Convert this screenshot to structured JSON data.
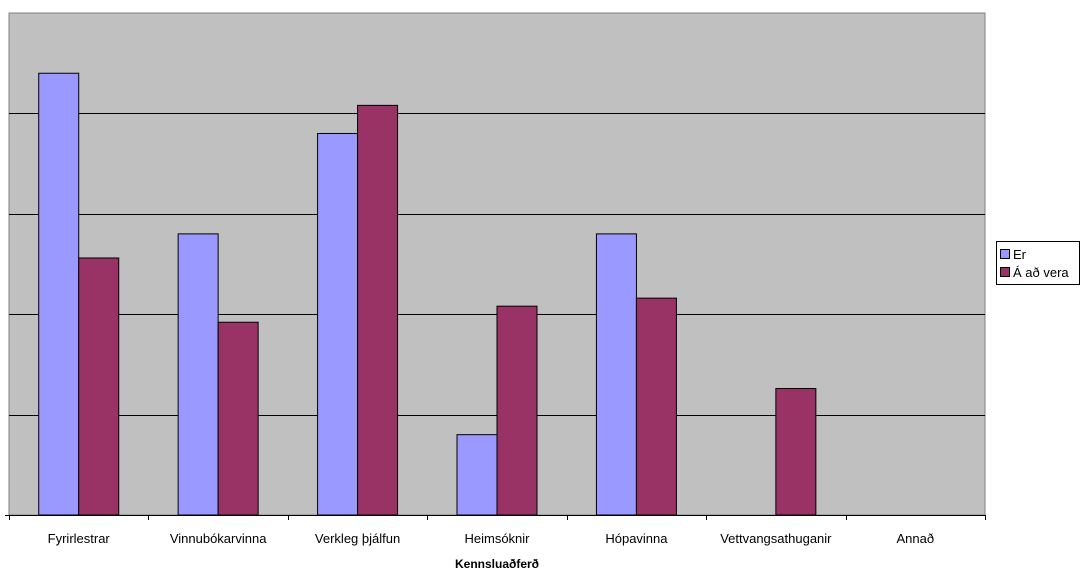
{
  "chart_data": {
    "type": "bar",
    "title": "",
    "xlabel": "Kennsluaðferð",
    "ylabel": "",
    "categories": [
      "Fyrirlestrar",
      "Vinnubókarvinna",
      "Verkleg þjálfun",
      "Heimsóknir",
      "Hópavinna",
      "Vettvangsathuganir",
      "Annað"
    ],
    "series": [
      {
        "name": "Er",
        "color": "#9999ff",
        "values": [
          22,
          14,
          19,
          4,
          14,
          0,
          0
        ]
      },
      {
        "name": "Á að vera",
        "color": "#993366",
        "values": [
          12.8,
          9.6,
          20.4,
          10.4,
          10.8,
          6.3,
          0
        ]
      }
    ],
    "ylim": [
      0,
      25
    ],
    "ytick_step": 5,
    "grid": true,
    "y_tick_labels_shown": false,
    "legend_position": "right",
    "plot_background": "#c0c0c0"
  }
}
